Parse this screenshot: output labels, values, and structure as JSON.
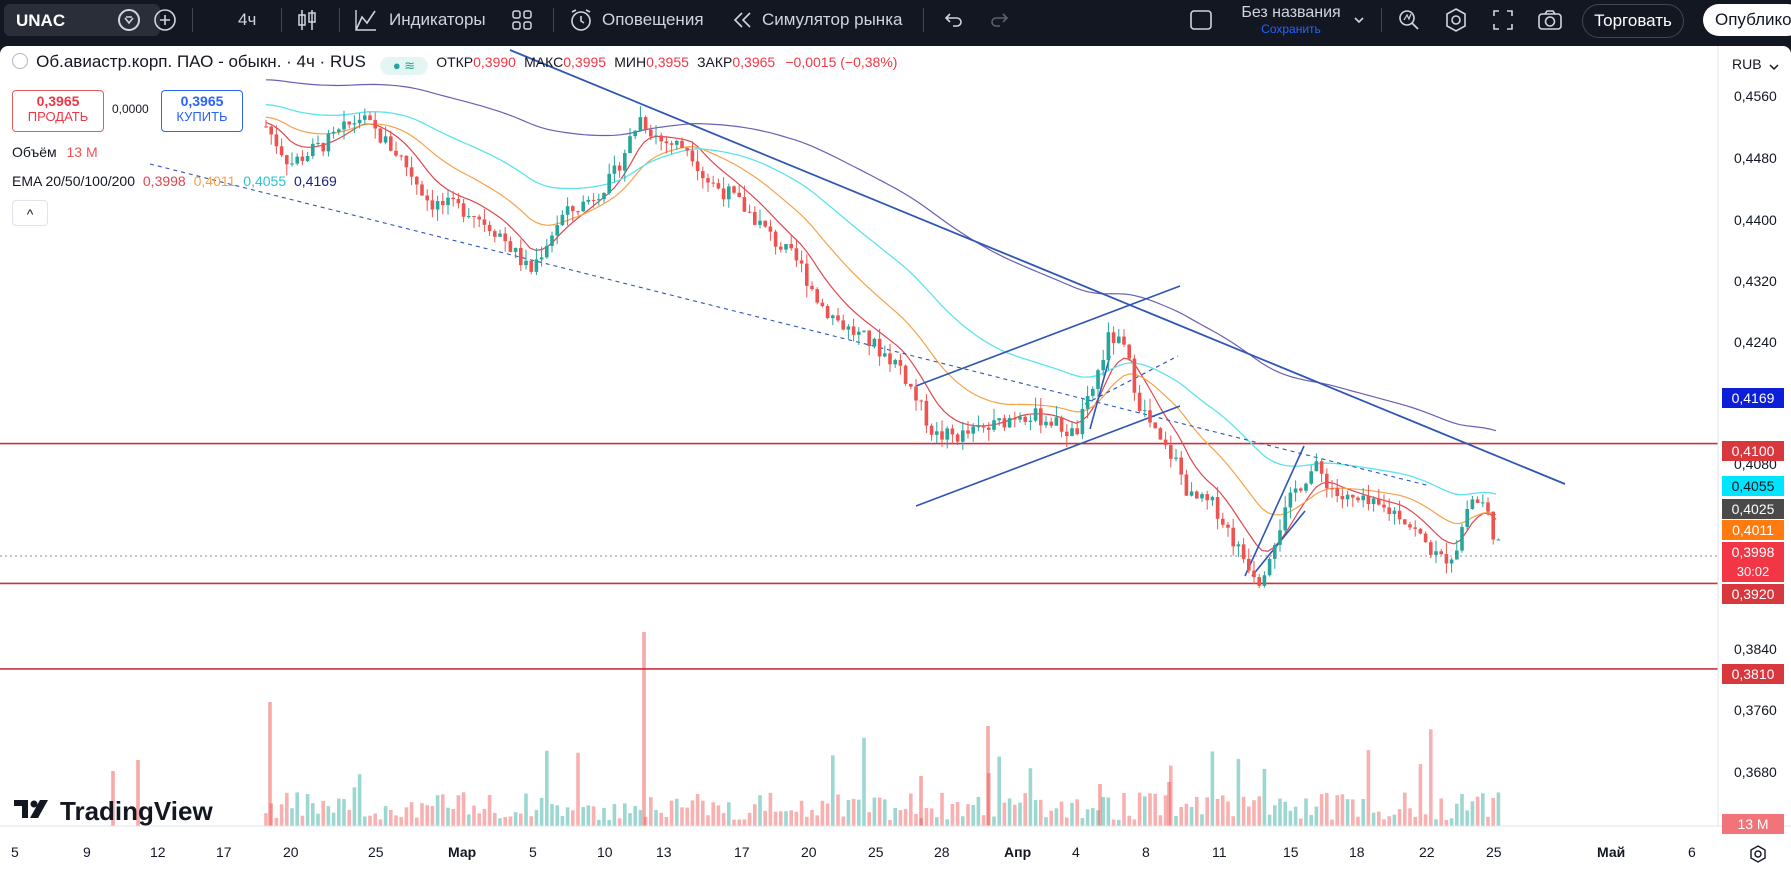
{
  "toolbar": {
    "symbol": "UNAC",
    "interval": "4ч",
    "indicators_label": "Индикаторы",
    "alerts_label": "Оповещения",
    "simulator_label": "Симулятор рынка",
    "layout_name": "Без названия",
    "layout_save": "Сохранить",
    "trade_label": "Торговать",
    "publish_label": "Опублико"
  },
  "legend": {
    "title": "Об.авиастр.корп. ПАО - обыкн. · 4ч · RUS",
    "o_label": "ОТКР",
    "o": "0,3990",
    "h_label": "МАКС",
    "h": "0,3995",
    "l_label": "МИН",
    "l": "0,3955",
    "c_label": "ЗАКР",
    "c": "0,3965",
    "change": "−0,0015 (−0,38%)",
    "sell_price": "0,3965",
    "sell_label": "ПРОДАТЬ",
    "spread": "0,0000",
    "buy_price": "0,3965",
    "buy_label": "КУПИТЬ",
    "volume_label": "Объём",
    "volume_value": "13 M",
    "ema_label": "EMA 20/50/100/200",
    "ema20": "0,3998",
    "ema50": "0,4011",
    "ema100": "0,4055",
    "ema200": "0,4169",
    "collapse_glyph": "^"
  },
  "price_axis": {
    "currency": "RUB",
    "ticks": [
      "0,4560",
      "0,4480",
      "0,4400",
      "0,4320",
      "0,4240",
      "0,4080",
      "0,3840",
      "0,3760",
      "0,3680"
    ],
    "tags": [
      {
        "text": "0,4169",
        "color": "#0c1fd6"
      },
      {
        "text": "0,4100",
        "color": "#d9373e"
      },
      {
        "text": "0,4055",
        "color": "#00e5ff"
      },
      {
        "text": "0,4025",
        "color": "#4a4a4a"
      },
      {
        "text": "0,4011",
        "color": "#ff7b0f"
      },
      {
        "text": "0,3998",
        "color": "#f23645"
      },
      {
        "text": "30:02",
        "color": "#f23645"
      },
      {
        "text": "0,3920",
        "color": "#d9373e"
      },
      {
        "text": "0,3810",
        "color": "#d9373e"
      },
      {
        "text": "13 M",
        "color": "#f0747a"
      }
    ]
  },
  "time_axis": {
    "labels": [
      "5",
      "9",
      "12",
      "17",
      "20",
      "25",
      "Мар",
      "5",
      "10",
      "13",
      "17",
      "20",
      "25",
      "28",
      "Апр",
      "4",
      "8",
      "11",
      "15",
      "18",
      "22",
      "25",
      "Май",
      "6"
    ]
  },
  "watermark": "TradingView",
  "colors": {
    "up": "#26a69a",
    "down": "#ef5350",
    "ema20": "#e0464d",
    "ema50": "#f5a34a",
    "ema100": "#5ce4ec",
    "ema200": "#6a5fb3",
    "hline": "#c9333b",
    "trend": "#2e56b5"
  },
  "chart_data": {
    "type": "candlestick",
    "ylim": [
      0.366,
      0.458
    ],
    "horizontal_levels": [
      0.41,
      0.392,
      0.381
    ]
  }
}
